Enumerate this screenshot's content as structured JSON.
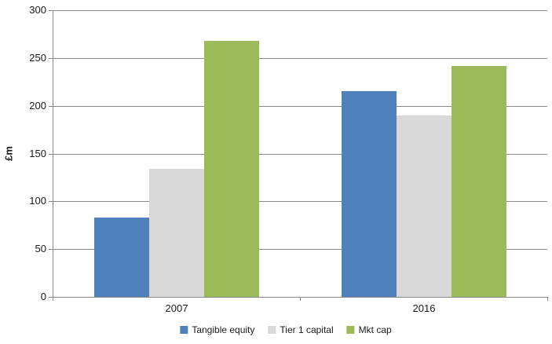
{
  "chart_data": {
    "type": "bar",
    "title": "",
    "xlabel": "",
    "ylabel": "£m",
    "categories": [
      "2007",
      "2016"
    ],
    "series": [
      {
        "name": "Tangible equity",
        "color": "#4f81bd",
        "values": [
          83,
          215
        ]
      },
      {
        "name": "Tier 1 capital",
        "color": "#d9d9d9",
        "values": [
          134,
          190
        ]
      },
      {
        "name": "Mkt cap",
        "color": "#9bbb59",
        "values": [
          268,
          242
        ]
      }
    ],
    "ylim": [
      0,
      300
    ],
    "yticks": [
      0,
      50,
      100,
      150,
      200,
      250,
      300
    ],
    "grid": true,
    "legend_position": "bottom",
    "colors": {
      "axis": "#898989",
      "gridline": "#898989",
      "text": "#1a1a1a",
      "background": "#ffffff"
    }
  }
}
